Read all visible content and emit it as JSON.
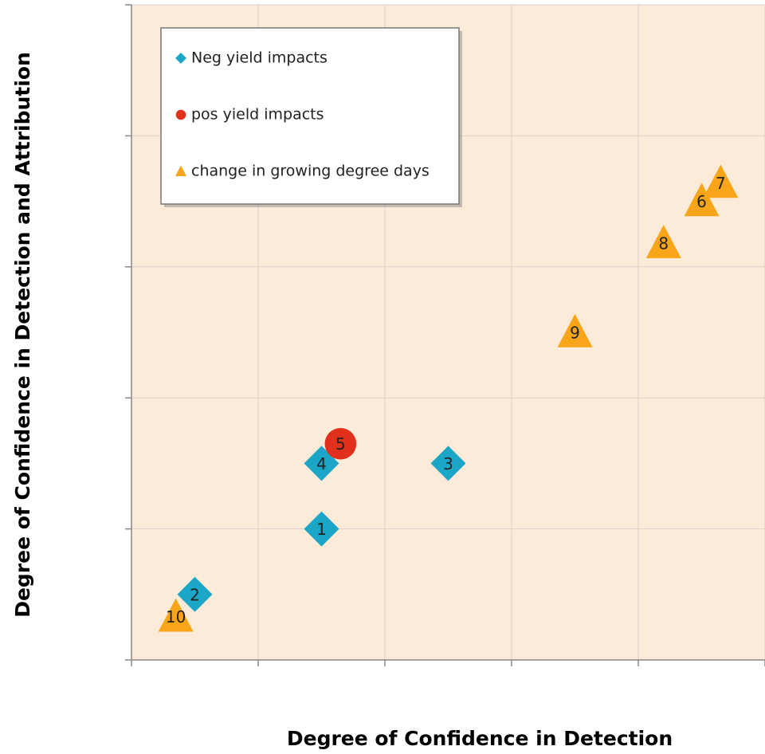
{
  "chart_data": {
    "type": "scatter",
    "x_label": "Degree of Confidence in Detection",
    "y_label": "Degree of Confidence in Detection and Attribution",
    "xlim": [
      0,
      5
    ],
    "ylim": [
      0,
      5
    ],
    "xticks": [
      0,
      1,
      2,
      3,
      4,
      5
    ],
    "yticks": [
      0,
      1,
      2,
      3,
      4,
      5
    ],
    "grid": true,
    "legend": "upper left",
    "series": [
      {
        "name": "Neg yield impacts",
        "color": "#1ba6c8",
        "marker": "diamond",
        "x": [
          1.5,
          0.5,
          2.5,
          1.5
        ],
        "values": [
          1.0,
          0.5,
          1.5,
          1.5
        ],
        "labels": [
          "1",
          "2",
          "3",
          "4"
        ]
      },
      {
        "name": "pos yield impacts",
        "color": "#e1301c",
        "marker": "circle",
        "x": [
          1.65
        ],
        "values": [
          1.65
        ],
        "labels": [
          "5"
        ]
      },
      {
        "name": "change in growing degree days",
        "color": "#f9a51a",
        "marker": "triangle",
        "x": [
          4.5,
          4.65,
          4.2,
          3.5,
          0.35
        ],
        "values": [
          3.5,
          3.64,
          3.18,
          2.5,
          0.33
        ],
        "labels": [
          "6",
          "7",
          "8",
          "9",
          "10"
        ]
      }
    ]
  }
}
